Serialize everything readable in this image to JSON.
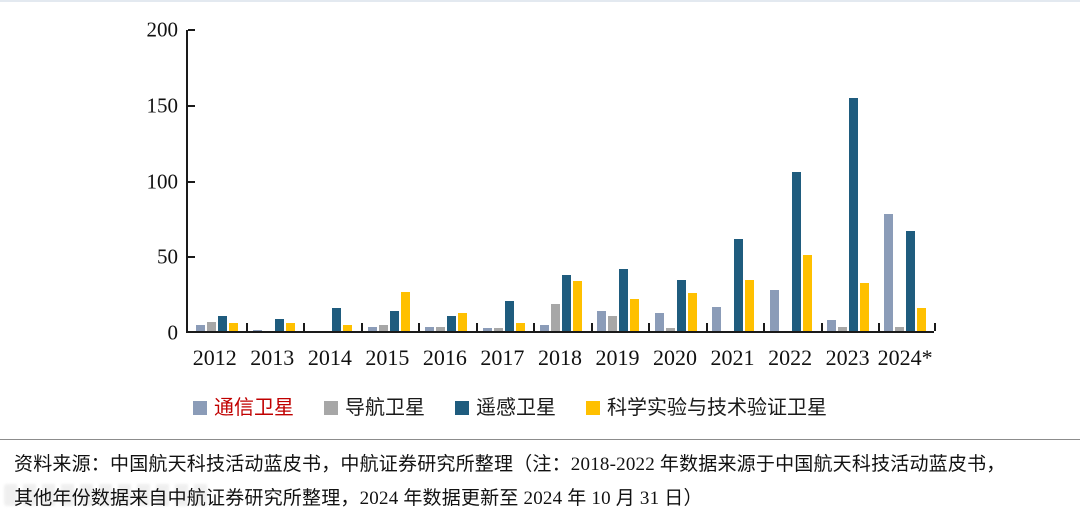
{
  "chart_data": {
    "type": "bar",
    "title": "",
    "categories": [
      "2012",
      "2013",
      "2014",
      "2015",
      "2016",
      "2017",
      "2018",
      "2019",
      "2020",
      "2021",
      "2022",
      "2023",
      "2024*"
    ],
    "series": [
      {
        "name": "通信卫星",
        "color": "#8B9CB8",
        "legend_text_color": "#C00000",
        "values": [
          4,
          1,
          0,
          3,
          3,
          2,
          4,
          13,
          12,
          16,
          27,
          7,
          77
        ]
      },
      {
        "name": "导航卫星",
        "color": "#A7A7A7",
        "legend_text_color": "#1a1a1a",
        "values": [
          6,
          0,
          0,
          4,
          3,
          2,
          18,
          10,
          2,
          0,
          0,
          3,
          3
        ]
      },
      {
        "name": "遥感卫星",
        "color": "#1F5C7E",
        "legend_text_color": "#1a1a1a",
        "values": [
          10,
          8,
          15,
          13,
          10,
          20,
          37,
          41,
          34,
          61,
          105,
          154,
          66
        ]
      },
      {
        "name": "科学实验与技术验证卫星",
        "color": "#FFC000",
        "legend_text_color": "#1a1a1a",
        "values": [
          5,
          5,
          4,
          26,
          12,
          5,
          33,
          21,
          25,
          34,
          50,
          32,
          15
        ]
      }
    ],
    "ylim": [
      0,
      200
    ],
    "yticks": [
      0,
      50,
      100,
      150,
      200
    ],
    "xlabel": "",
    "ylabel": "",
    "grid": false,
    "legend_position": "bottom"
  },
  "footer": {
    "line1": "资料来源：中国航天科技活动蓝皮书，中航证券研究所整理（注：2018-2022 年数据来源于中国航天科技活动蓝皮书，",
    "line2": "其他年份数据来自中航证券研究所整理，2024 年数据更新至 2024 年 10 月 31 日）"
  }
}
